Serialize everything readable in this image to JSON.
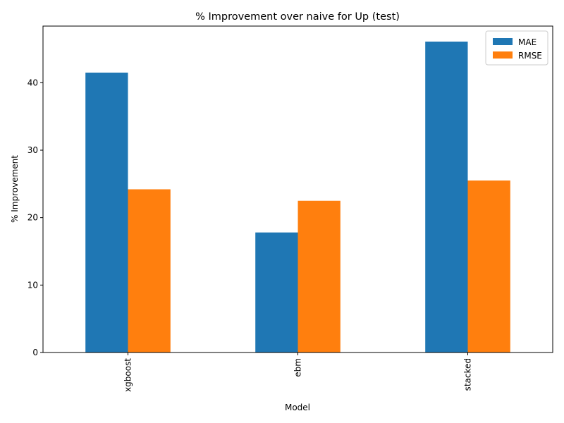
{
  "chart_data": {
    "type": "bar",
    "title": "% Improvement over naive for Up (test)",
    "xlabel": "Model",
    "ylabel": "% Improvement",
    "categories": [
      "xgboost",
      "ebm",
      "stacked"
    ],
    "series": [
      {
        "name": "MAE",
        "color": "#1f77b4",
        "values": [
          41.5,
          17.8,
          46.1
        ]
      },
      {
        "name": "RMSE",
        "color": "#ff7f0e",
        "values": [
          24.2,
          22.5,
          25.5
        ]
      }
    ],
    "ylim": [
      0,
      48.4
    ],
    "yticks": [
      0,
      10,
      20,
      30,
      40
    ],
    "grid": false,
    "legend_position": "top-right"
  }
}
